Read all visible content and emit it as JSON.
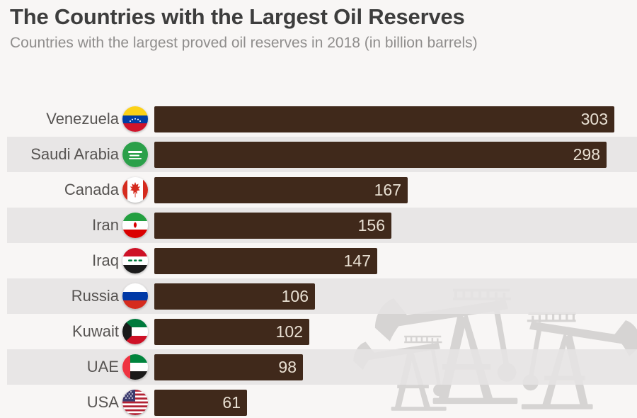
{
  "header": {
    "title": "The Countries with the Largest Oil Reserves",
    "subtitle": "Countries with the largest proved oil reserves in 2018 (in billion barrels)"
  },
  "watermark_icon": "oil-pumpjack-silhouettes",
  "colors": {
    "background": "#f8f6f5",
    "bar": "#40291b",
    "bar_value_text": "#e9e0d3",
    "row_band": "#e8e6e6",
    "title_text": "#3d3d3d",
    "subtitle_text": "#8f8d8c",
    "country_label_text": "#575452",
    "watermark": "#c9c7c6"
  },
  "chart_data": {
    "type": "bar",
    "orientation": "horizontal",
    "title": "The Countries with the Largest Oil Reserves",
    "subtitle": "Countries with the largest proved oil reserves in 2018 (in billion barrels)",
    "unit": "billion barrels",
    "year": 2018,
    "xlim": [
      0,
      310
    ],
    "grid": false,
    "legend": false,
    "value_labels": "inside-bar-end",
    "row_striping": "alternate",
    "categories": [
      "Venezuela",
      "Saudi Arabia",
      "Canada",
      "Iran",
      "Iraq",
      "Russia",
      "Kuwait",
      "UAE",
      "USA"
    ],
    "values": [
      303,
      298,
      167,
      156,
      147,
      106,
      102,
      98,
      61
    ],
    "flag_icons": [
      "venezuela-flag-icon",
      "saudi-arabia-flag-icon",
      "canada-flag-icon",
      "iran-flag-icon",
      "iraq-flag-icon",
      "russia-flag-icon",
      "kuwait-flag-icon",
      "uae-flag-icon",
      "usa-flag-icon"
    ]
  }
}
